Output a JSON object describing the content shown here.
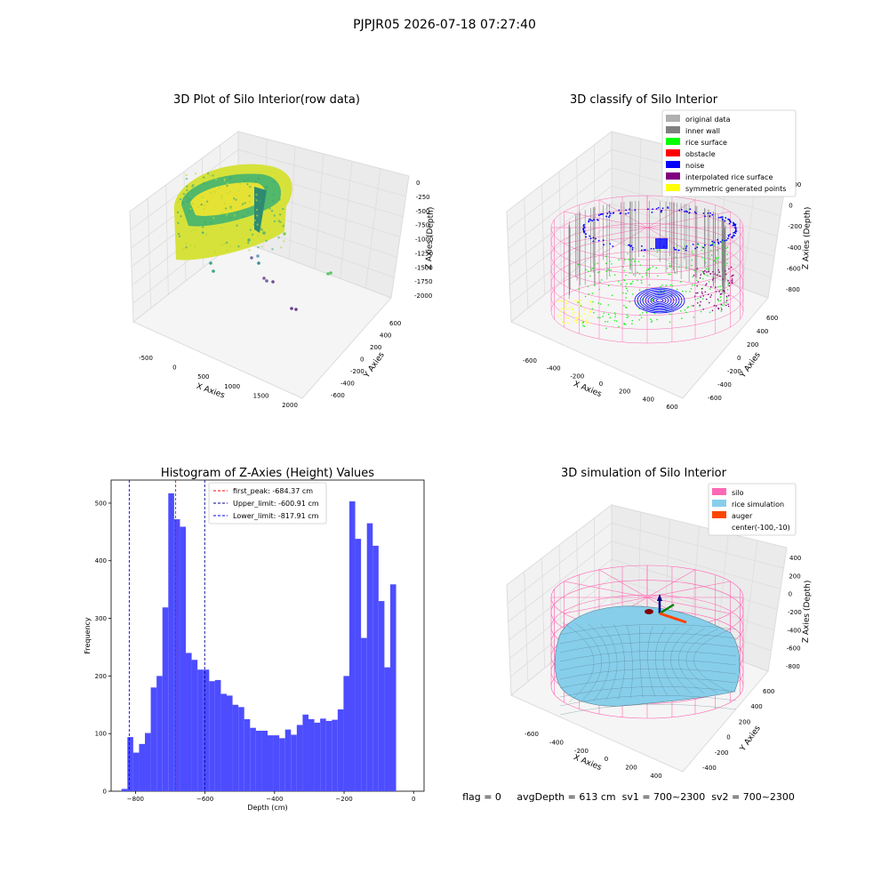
{
  "figure": {
    "suptitle": "PJPJR05 2026-07-18 07:27:40"
  },
  "chart_data": [
    {
      "type": "scatter",
      "subtype": "3d-scatter",
      "title": "3D Plot of Silo Interior(row data)",
      "xlabel": "X Axies",
      "ylabel": "Y Axies",
      "zlabel": "Z Axies (Depth)",
      "xticks": [
        "-500",
        "0",
        "500",
        "1000",
        "1500",
        "2000"
      ],
      "yticks": [
        "-600",
        "-400",
        "-200",
        "0",
        "200",
        "400",
        "600"
      ],
      "zticks": [
        "0",
        "-250",
        "-500",
        "-750",
        "-1000",
        "-1250",
        "-1500",
        "-1750",
        "-2000"
      ],
      "xlim": [
        -650,
        2100
      ],
      "ylim": [
        -650,
        650
      ],
      "zlim": [
        -2050,
        50
      ],
      "colormap": "viridis",
      "outlier_points": [
        {
          "x": 900,
          "y": 100,
          "z": -1900
        },
        {
          "x": 950,
          "y": 50,
          "z": -1920
        },
        {
          "x": 1500,
          "y": 300,
          "z": -1600
        },
        {
          "x": 400,
          "y": -300,
          "z": -1500
        },
        {
          "x": 450,
          "y": -200,
          "z": -1400
        }
      ]
    },
    {
      "type": "scatter",
      "subtype": "3d-scatter",
      "title": "3D classify of Silo Interior",
      "xlabel": "X Axies",
      "ylabel": "Y Axies",
      "zlabel": "Z Axies (Depth)",
      "xticks": [
        "-600",
        "-400",
        "-200",
        "0",
        "200",
        "400",
        "600"
      ],
      "yticks": [
        "-600",
        "-400",
        "-200",
        "0",
        "200",
        "400",
        "600"
      ],
      "zticks": [
        "200",
        "0",
        "-200",
        "-400",
        "-600",
        "-800"
      ],
      "legend_position": "top-right",
      "legend": [
        {
          "label": "original data",
          "color": "#b0b0b0"
        },
        {
          "label": "inner wall",
          "color": "#808080"
        },
        {
          "label": "rice surface",
          "color": "#00ff00"
        },
        {
          "label": "obstacle",
          "color": "#ff0000"
        },
        {
          "label": "noise",
          "color": "#0000ff"
        },
        {
          "label": "interpolated rice surface",
          "color": "#800080"
        },
        {
          "label": "symmetric generated points",
          "color": "#ffff00"
        }
      ],
      "silo_wire_color": "#ff69b4"
    },
    {
      "type": "bar",
      "subtype": "histogram",
      "title": "Histogram of Z-Axies (Height) Values",
      "xlabel": "Depth (cm)",
      "ylabel": "Frequency",
      "xlim": [
        -870,
        30
      ],
      "ylim": [
        0,
        540
      ],
      "xticks": [
        -800,
        -600,
        -400,
        -200,
        0
      ],
      "yticks": [
        0,
        100,
        200,
        300,
        400,
        500
      ],
      "bar_color": "#4d4dff",
      "bin_start": -840,
      "bin_width": 16.8,
      "values": [
        4,
        94,
        67,
        82,
        101,
        180,
        200,
        319,
        517,
        472,
        459,
        240,
        228,
        211,
        211,
        191,
        193,
        169,
        166,
        150,
        146,
        125,
        110,
        105,
        105,
        97,
        97,
        92,
        107,
        98,
        115,
        133,
        125,
        119,
        126,
        122,
        124,
        142,
        200,
        503,
        438,
        266,
        465,
        426,
        330,
        215,
        359
      ],
      "reference_lines": [
        {
          "label": "first_peak: -684.37 cm",
          "value": -684.37,
          "color": "#ff0000"
        },
        {
          "label": "Upper_limit: -600.91 cm",
          "value": -600.91,
          "color": "#00008b"
        },
        {
          "label": "Lower_limit: -817.91 cm",
          "value": -817.91,
          "color": "#0000ff"
        }
      ],
      "legend_position": "top-left"
    },
    {
      "type": "scatter",
      "subtype": "3d-surface",
      "title": "3D simulation of Silo Interior",
      "xlabel": "X Axies",
      "ylabel": "Y Axies",
      "zlabel": "Z Axies (Depth)",
      "xticks": [
        "-600",
        "-400",
        "-200",
        "0",
        "200",
        "400"
      ],
      "yticks": [
        "-400",
        "-200",
        "0",
        "200",
        "400",
        "600"
      ],
      "zticks": [
        "400",
        "200",
        "0",
        "-200",
        "-400",
        "-600",
        "-800"
      ],
      "legend_position": "top-right",
      "legend": [
        {
          "label": "silo",
          "color": "#ff69b4"
        },
        {
          "label": "rice simulation",
          "color": "#87ceeb"
        },
        {
          "label": "auger",
          "color": "#ff4500"
        },
        {
          "label": "center(-100,-10)",
          "color": ""
        }
      ],
      "footer": "flag = 0     avgDepth = 613 cm  sv1 = 700~2300  sv2 = 700~2300"
    }
  ]
}
